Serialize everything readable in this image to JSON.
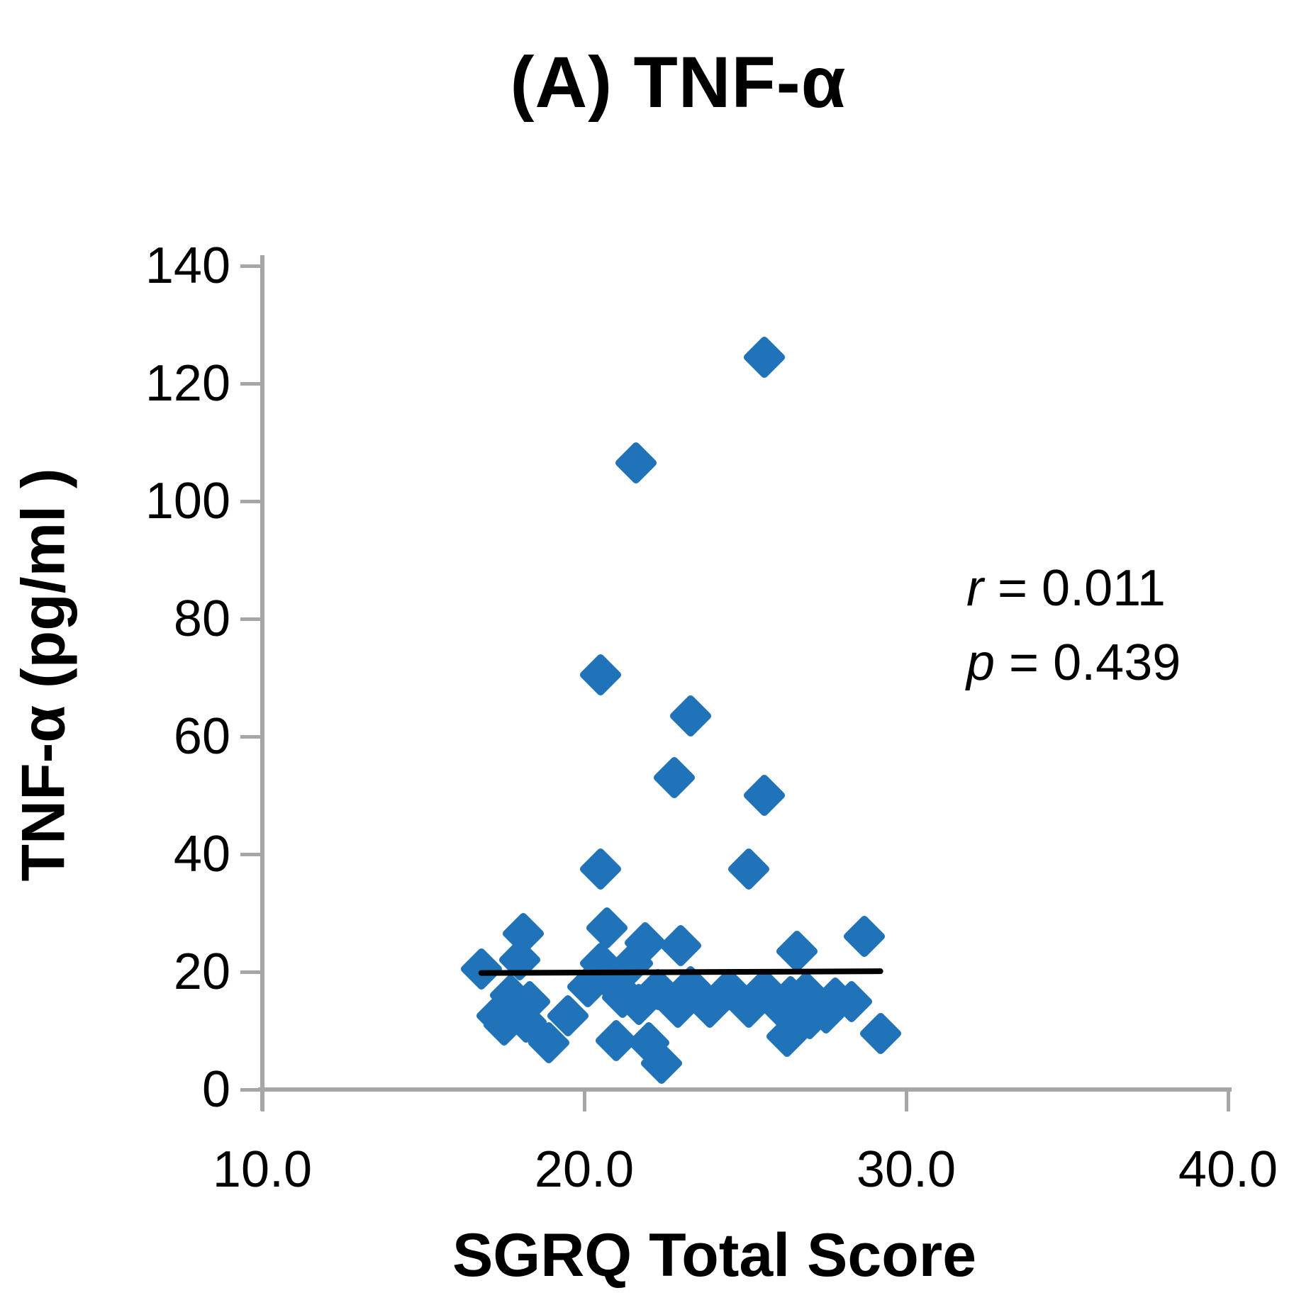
{
  "chart_data": {
    "type": "scatter",
    "title": "(A) TNF-α",
    "xlabel": "SGRQ Total Score",
    "ylabel": "TNF-α (pg/ml )",
    "xlim": [
      10.0,
      40.0
    ],
    "ylim": [
      0,
      140
    ],
    "grid": false,
    "legend": "none",
    "x_tick_labels": [
      "10.0",
      "20.0",
      "30.0",
      "40.0"
    ],
    "x_tick_values": [
      10,
      20,
      30,
      40
    ],
    "y_tick_labels": [
      "0",
      "20",
      "40",
      "60",
      "80",
      "100",
      "120",
      "140"
    ],
    "y_tick_values": [
      0,
      20,
      40,
      60,
      80,
      100,
      120,
      140
    ],
    "marker_shape": "diamond",
    "marker_color": "#2173B9",
    "axis_color": "#A6A6A6",
    "trendline": {
      "x1": 16.8,
      "y1": 19.8,
      "x2": 29.2,
      "y2": 20.1,
      "color": "#000000"
    },
    "annotation": {
      "r_var": "r",
      "r_text": " = 0.011",
      "p_var": "p",
      "p_text": " = 0.439"
    },
    "points": [
      [
        25.6,
        124.5
      ],
      [
        21.6,
        106.5
      ],
      [
        20.5,
        70.5
      ],
      [
        23.3,
        63.5
      ],
      [
        22.8,
        53.0
      ],
      [
        25.6,
        50.0
      ],
      [
        20.5,
        37.5
      ],
      [
        25.1,
        37.5
      ],
      [
        18.1,
        26.5
      ],
      [
        20.7,
        27.5
      ],
      [
        21.9,
        25.0
      ],
      [
        23.0,
        24.5
      ],
      [
        26.6,
        23.5
      ],
      [
        28.7,
        26.0
      ],
      [
        16.8,
        20.5
      ],
      [
        18.0,
        22.0
      ],
      [
        20.5,
        21.5
      ],
      [
        21.5,
        21.5
      ],
      [
        17.7,
        16.0
      ],
      [
        18.3,
        15.0
      ],
      [
        19.5,
        12.5
      ],
      [
        20.1,
        17.5
      ],
      [
        21.0,
        17.5
      ],
      [
        21.7,
        14.5
      ],
      [
        22.3,
        17.0
      ],
      [
        22.9,
        14.0
      ],
      [
        23.3,
        17.5
      ],
      [
        23.9,
        14.0
      ],
      [
        24.5,
        17.0
      ],
      [
        25.1,
        14.0
      ],
      [
        25.6,
        17.0
      ],
      [
        26.2,
        13.5
      ],
      [
        26.9,
        16.5
      ],
      [
        27.8,
        15.5
      ],
      [
        28.3,
        15.0
      ],
      [
        26.4,
        15.8
      ],
      [
        21.2,
        15.7
      ],
      [
        17.3,
        12.5
      ],
      [
        17.5,
        11.0
      ],
      [
        18.2,
        11.5
      ],
      [
        18.9,
        8.0
      ],
      [
        21.0,
        8.3
      ],
      [
        22.0,
        8.0
      ],
      [
        26.3,
        9.0
      ],
      [
        27.0,
        12.0
      ],
      [
        27.5,
        13.0
      ],
      [
        29.2,
        9.5
      ],
      [
        22.4,
        4.5
      ]
    ]
  }
}
